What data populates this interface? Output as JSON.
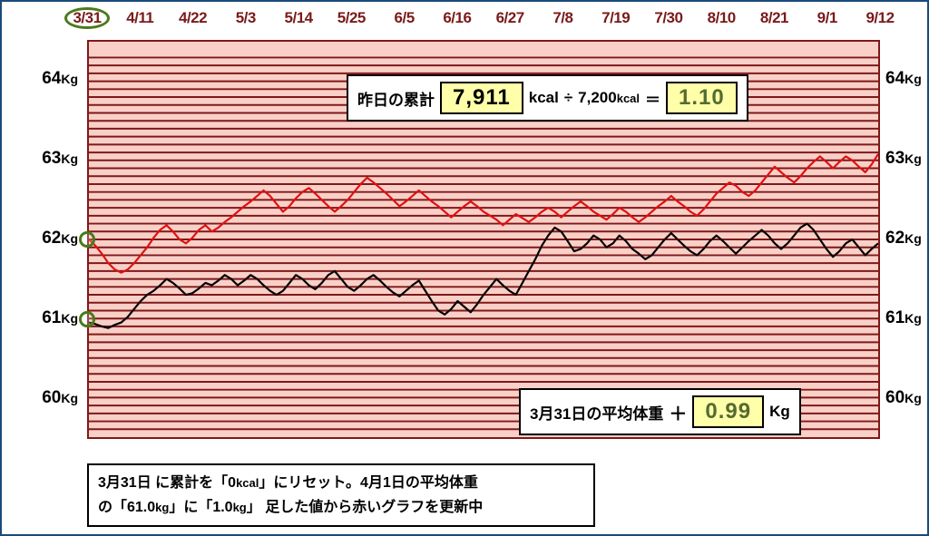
{
  "chart": {
    "type": "line",
    "background_color": "#f8d0c8",
    "border_color": "#801818",
    "grid_major_color": "#801818",
    "grid_minor_color": "#d88a7a",
    "major_line_width": 2,
    "minor_line_width": 0.6,
    "y_unit": "Kg",
    "ylim": [
      59.5,
      64.5
    ],
    "y_major_ticks": [
      60,
      61,
      62,
      63,
      64
    ],
    "y_minor_step": 0.1,
    "x_dates": [
      "3/31",
      "4/11",
      "4/22",
      "5/3",
      "5/14",
      "5/25",
      "6/5",
      "6/16",
      "6/27",
      "7/8",
      "7/19",
      "7/30",
      "8/10",
      "8/21",
      "9/1",
      "9/12"
    ],
    "x_label_color": "#7a1a1a",
    "x_label_fontsize": 17,
    "y_label_fontsize": 19,
    "circled_date": "3/31",
    "circle_color": "#4a7a1a",
    "start_markers": [
      {
        "series": "black",
        "y": 61.0
      },
      {
        "series": "red",
        "y": 62.0
      }
    ],
    "series": [
      {
        "name": "black",
        "color": "#000000",
        "line_width": 2.2,
        "start_y": 60.95,
        "data": [
          60.95,
          60.93,
          60.9,
          60.88,
          60.92,
          60.95,
          61.02,
          61.12,
          61.22,
          61.3,
          61.35,
          61.42,
          61.5,
          61.45,
          61.38,
          61.3,
          61.32,
          61.38,
          61.45,
          61.42,
          61.48,
          61.55,
          61.5,
          61.42,
          61.48,
          61.55,
          61.5,
          61.42,
          61.35,
          61.3,
          61.35,
          61.45,
          61.55,
          61.5,
          61.42,
          61.37,
          61.45,
          61.55,
          61.6,
          61.5,
          61.4,
          61.35,
          61.42,
          61.5,
          61.55,
          61.48,
          61.4,
          61.33,
          61.28,
          61.35,
          61.42,
          61.48,
          61.35,
          61.22,
          61.1,
          61.05,
          61.12,
          61.22,
          61.15,
          61.08,
          61.18,
          61.3,
          61.4,
          61.5,
          61.42,
          61.35,
          61.3,
          61.45,
          61.6,
          61.75,
          61.92,
          62.05,
          62.15,
          62.1,
          61.98,
          61.85,
          61.88,
          61.95,
          62.05,
          62.0,
          61.9,
          61.95,
          62.05,
          61.98,
          61.88,
          61.82,
          61.75,
          61.8,
          61.9,
          62.0,
          62.08,
          62.0,
          61.92,
          61.85,
          61.8,
          61.88,
          61.98,
          62.05,
          61.98,
          61.9,
          61.82,
          61.9,
          61.98,
          62.05,
          62.12,
          62.05,
          61.95,
          61.88,
          61.95,
          62.05,
          62.15,
          62.2,
          62.12,
          62.0,
          61.88,
          61.78,
          61.85,
          61.95,
          62.0,
          61.9,
          61.8,
          61.88,
          61.95
        ]
      },
      {
        "name": "red",
        "color": "#e01010",
        "line_width": 2.2,
        "start_y": 62.0,
        "data": [
          62.0,
          61.92,
          61.82,
          61.7,
          61.62,
          61.58,
          61.62,
          61.7,
          61.8,
          61.9,
          62.02,
          62.12,
          62.18,
          62.1,
          62.0,
          61.95,
          62.02,
          62.12,
          62.18,
          62.1,
          62.15,
          62.22,
          62.28,
          62.35,
          62.42,
          62.48,
          62.55,
          62.62,
          62.55,
          62.45,
          62.35,
          62.42,
          62.52,
          62.6,
          62.65,
          62.58,
          62.5,
          62.42,
          62.35,
          62.42,
          62.5,
          62.6,
          62.7,
          62.78,
          62.72,
          62.65,
          62.58,
          62.5,
          62.42,
          62.48,
          62.55,
          62.62,
          62.55,
          62.48,
          62.42,
          62.35,
          62.28,
          62.35,
          62.42,
          62.48,
          62.42,
          62.35,
          62.3,
          62.25,
          62.18,
          62.25,
          62.32,
          62.27,
          62.22,
          62.28,
          62.35,
          62.4,
          62.35,
          62.28,
          62.35,
          62.42,
          62.48,
          62.42,
          62.35,
          62.3,
          62.25,
          62.32,
          62.4,
          62.35,
          62.28,
          62.22,
          62.28,
          62.35,
          62.42,
          62.48,
          62.55,
          62.48,
          62.42,
          62.35,
          62.3,
          62.38,
          62.48,
          62.58,
          62.65,
          62.72,
          62.68,
          62.6,
          62.55,
          62.62,
          62.72,
          62.82,
          62.92,
          62.85,
          62.78,
          62.72,
          62.8,
          62.9,
          62.98,
          63.05,
          62.98,
          62.9,
          62.98,
          63.05,
          63.0,
          62.92,
          62.85,
          62.95,
          63.08
        ]
      }
    ]
  },
  "info_top": {
    "label": "昨日の累計",
    "value": "7,911",
    "unit1": "kcal",
    "divider": "÷",
    "divisor": "7,200",
    "unit2": "kcal",
    "equals": "＝",
    "result": "1.10"
  },
  "info_bottom": {
    "label": "3月31日の平均体重",
    "sign": "＋",
    "value": "0.99",
    "unit": "Kg"
  },
  "caption": {
    "line1_a": "3月31日 ",
    "line1_b": "に累計を「0",
    "line1_c": "kcal",
    "line1_d": "」にリセット。4月1日の平均体重",
    "line2_a": "の「61.0",
    "line2_b": "kg",
    "line2_c": "」に「1.0",
    "line2_d": "kg",
    "line2_e": "」 足した値から赤いグラフを更新中"
  },
  "colors": {
    "frame_border": "#1a4a7a",
    "highlight_bg": "#ffffaa"
  }
}
